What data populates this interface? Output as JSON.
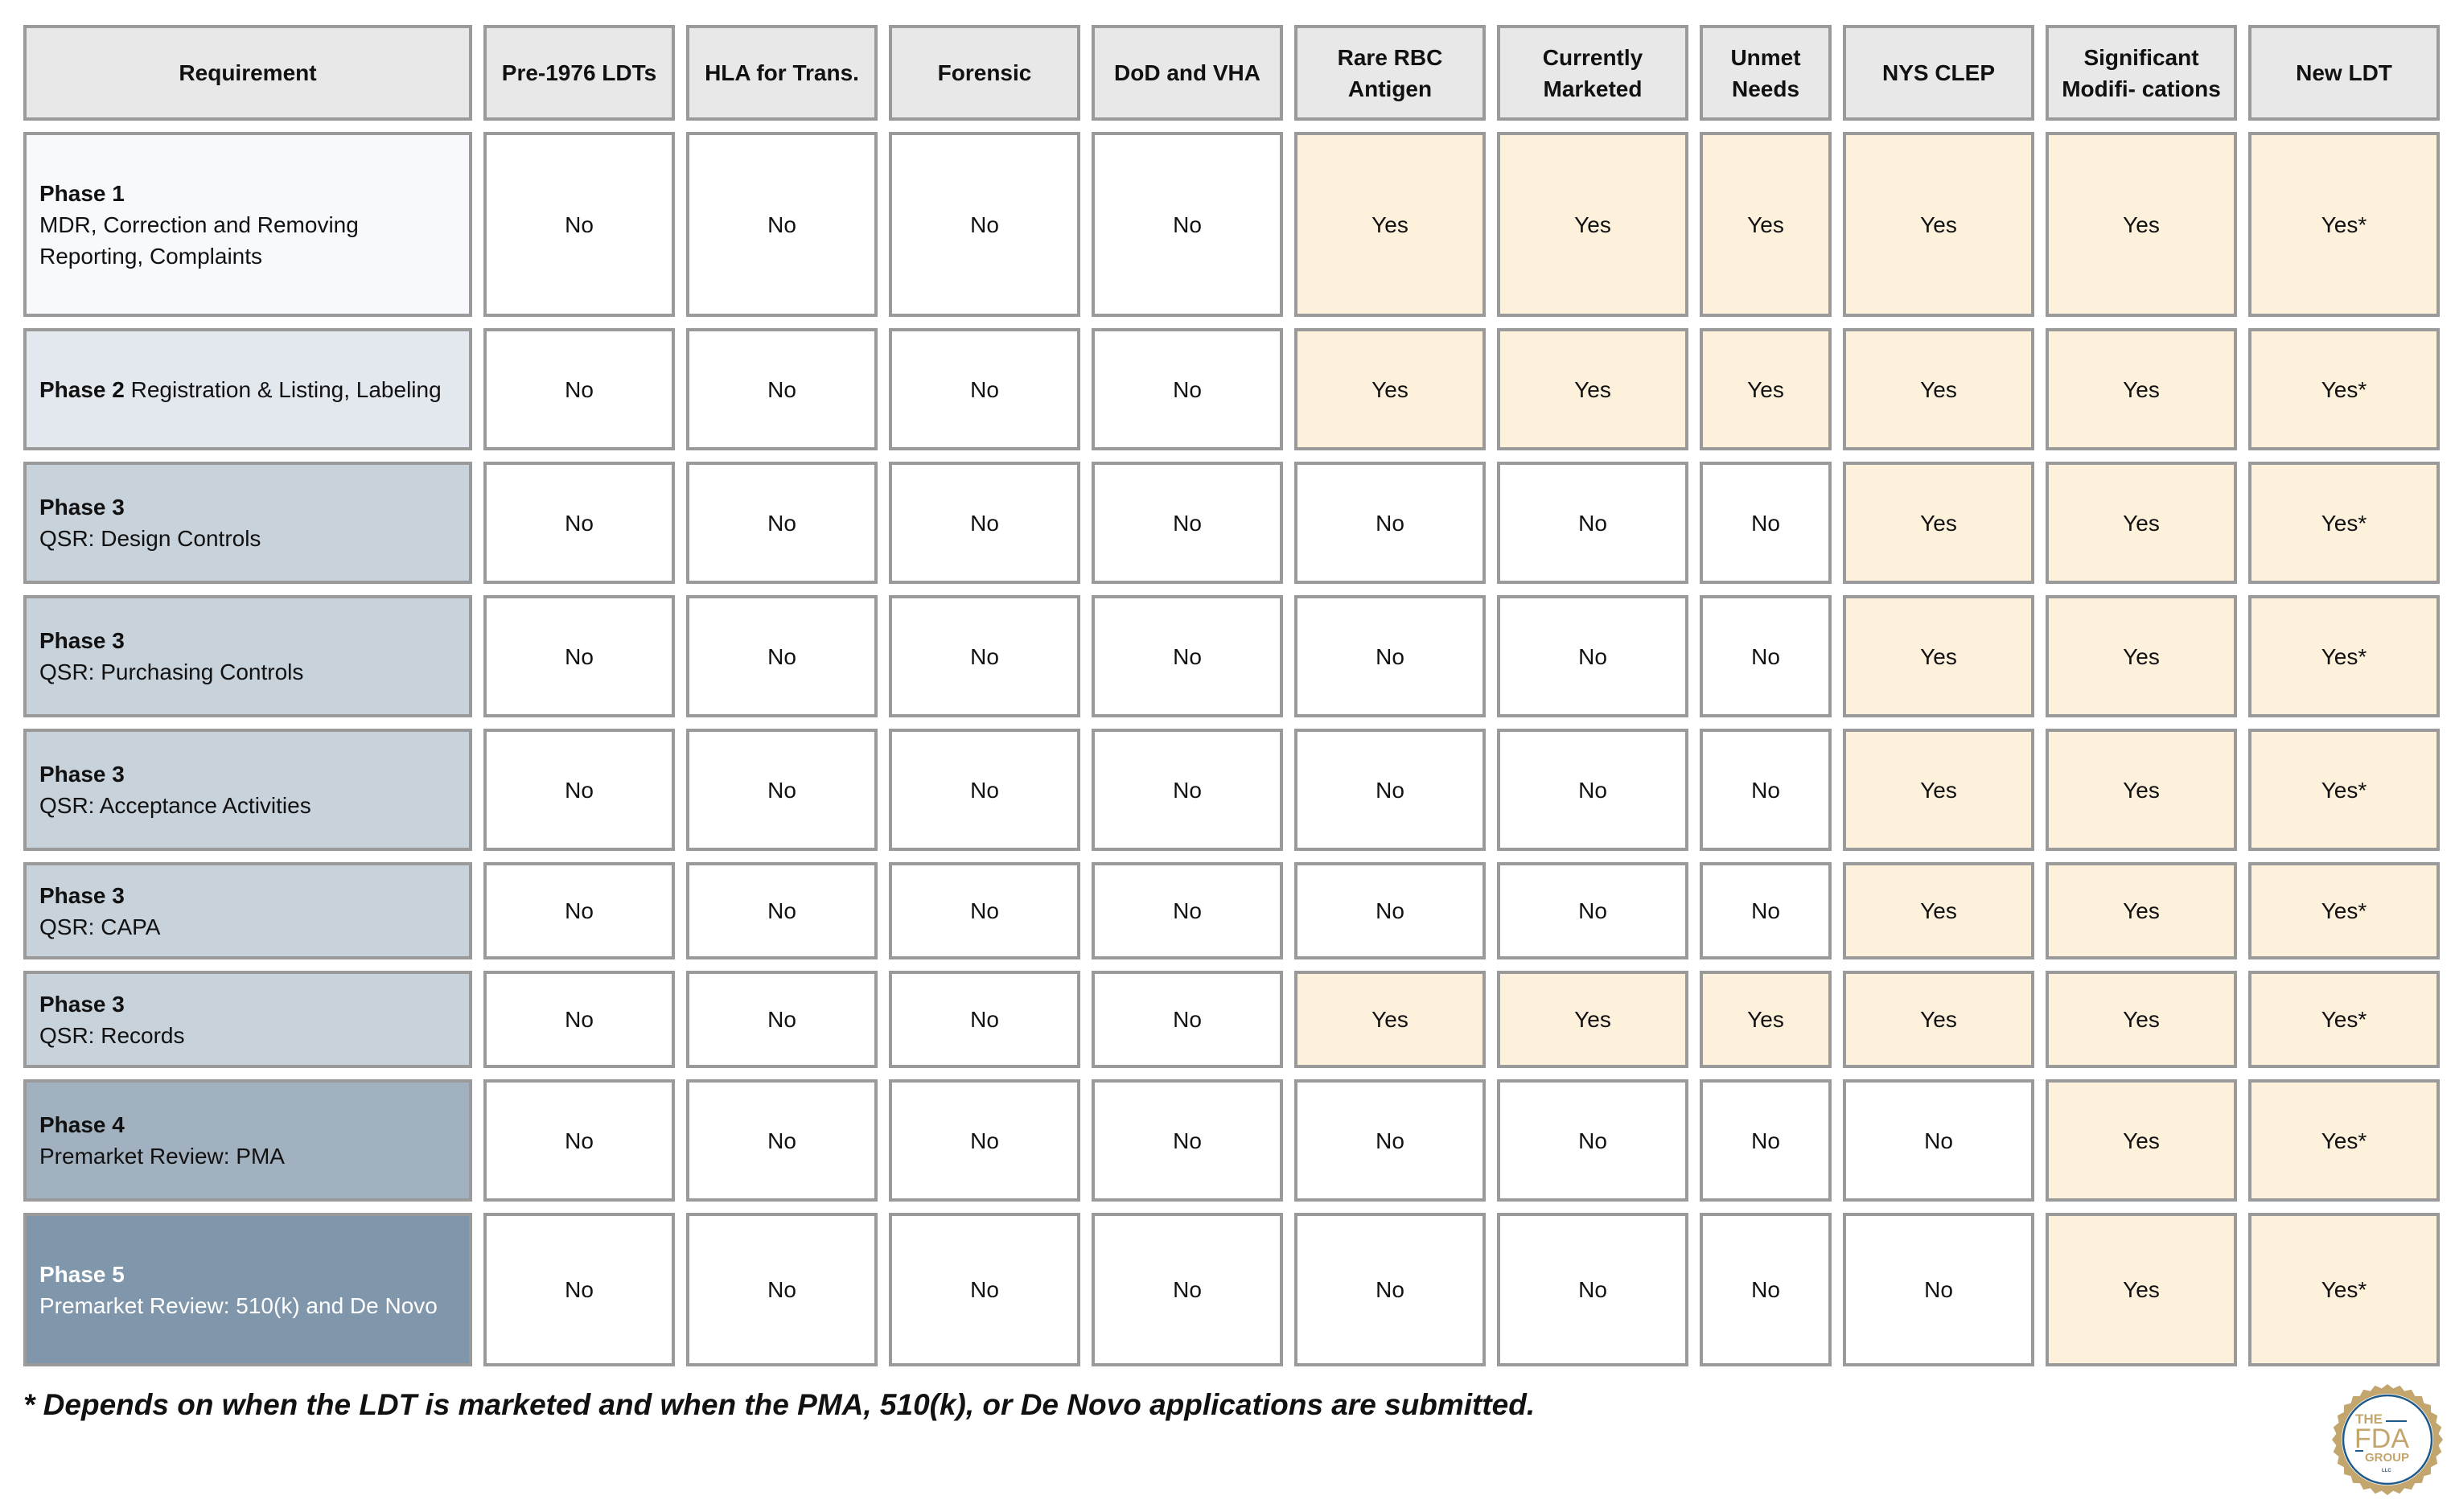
{
  "columns": [
    "Requirement",
    "Pre-1976 LDTs",
    "HLA for Trans.",
    "Forensic",
    "DoD and VHA",
    "Rare RBC Antigen",
    "Currently Marketed",
    "Unmet Needs",
    "NYS CLEP",
    "Significant Modifi- cations",
    "New LDT"
  ],
  "rows": [
    {
      "phase": "Phase 1",
      "desc": "MDR, Correction and Removing Reporting, Complaints",
      "inline": false,
      "bg": "#f7f9fc",
      "fg": "#111111",
      "values": [
        "No",
        "No",
        "No",
        "No",
        "Yes",
        "Yes",
        "Yes",
        "Yes",
        "Yes",
        "Yes*"
      ]
    },
    {
      "phase": "Phase 2",
      "desc": "Registration & Listing, Labeling",
      "inline": true,
      "bg": "#e3e8ef",
      "fg": "#111111",
      "values": [
        "No",
        "No",
        "No",
        "No",
        "Yes",
        "Yes",
        "Yes",
        "Yes",
        "Yes",
        "Yes*"
      ]
    },
    {
      "phase": "Phase 3",
      "desc": "QSR: Design Controls",
      "inline": false,
      "bg": "#c8d2db",
      "fg": "#111111",
      "values": [
        "No",
        "No",
        "No",
        "No",
        "No",
        "No",
        "No",
        "Yes",
        "Yes",
        "Yes*"
      ]
    },
    {
      "phase": "Phase 3",
      "desc": "QSR: Purchasing Controls",
      "inline": false,
      "bg": "#c8d2db",
      "fg": "#111111",
      "values": [
        "No",
        "No",
        "No",
        "No",
        "No",
        "No",
        "No",
        "Yes",
        "Yes",
        "Yes*"
      ]
    },
    {
      "phase": "Phase 3",
      "desc": "QSR: Acceptance Activities",
      "inline": false,
      "bg": "#c8d2db",
      "fg": "#111111",
      "values": [
        "No",
        "No",
        "No",
        "No",
        "No",
        "No",
        "No",
        "Yes",
        "Yes",
        "Yes*"
      ]
    },
    {
      "phase": "Phase 3",
      "desc": "QSR: CAPA",
      "inline": false,
      "bg": "#c8d2db",
      "fg": "#111111",
      "values": [
        "No",
        "No",
        "No",
        "No",
        "No",
        "No",
        "No",
        "Yes",
        "Yes",
        "Yes*"
      ]
    },
    {
      "phase": "Phase 3",
      "desc": "QSR: Records",
      "inline": false,
      "bg": "#c8d2db",
      "fg": "#111111",
      "values": [
        "No",
        "No",
        "No",
        "No",
        "Yes",
        "Yes",
        "Yes",
        "Yes",
        "Yes",
        "Yes*"
      ]
    },
    {
      "phase": "Phase 4",
      "desc": "Premarket Review: PMA",
      "inline": false,
      "bg": "#a2b1bf",
      "fg": "#111111",
      "values": [
        "No",
        "No",
        "No",
        "No",
        "No",
        "No",
        "No",
        "No",
        "Yes",
        "Yes*"
      ]
    },
    {
      "phase": "Phase 5",
      "desc": "Premarket Review: 510(k) and De Novo",
      "inline": false,
      "bg": "#7f96ab",
      "fg": "#ffffff",
      "values": [
        "No",
        "No",
        "No",
        "No",
        "No",
        "No",
        "No",
        "No",
        "Yes",
        "Yes*"
      ]
    }
  ],
  "colors": {
    "yes_bg": "#fdf1dc",
    "no_bg": "#ffffff",
    "header_bg": "#e8e8e8",
    "border": "#9a9a9a"
  },
  "footnote": "* Depends on when the LDT is marketed and when the PMA, 510(k), or De Novo applications are submitted.",
  "logo": {
    "line1": "THE",
    "line2": "FDA",
    "line3": "GROUP",
    "line4": "LLC"
  }
}
